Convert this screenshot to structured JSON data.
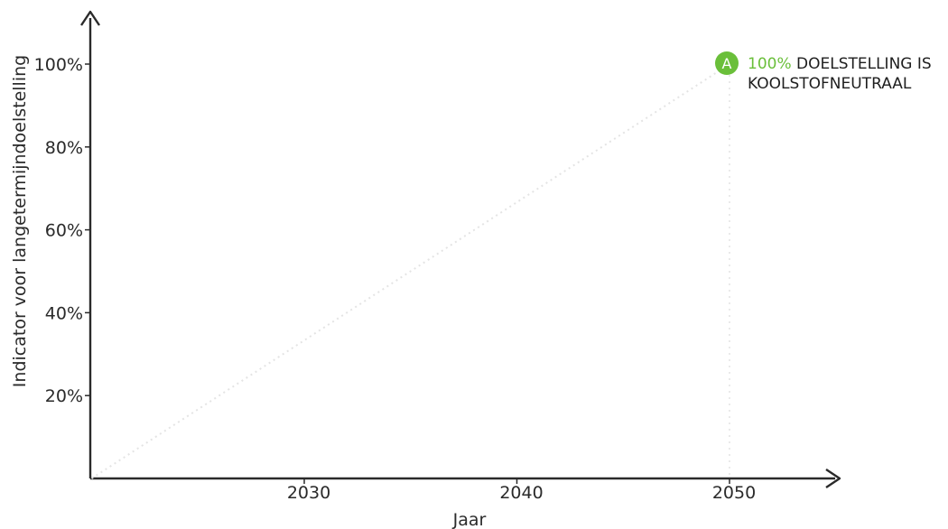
{
  "chart_data": {
    "type": "line",
    "title": "",
    "xlabel": "Jaar",
    "ylabel": "Indicator voor langetermijndoelstelling",
    "x_ticks": [
      "2030",
      "2040",
      "2050"
    ],
    "y_ticks": [
      "20%",
      "40%",
      "60%",
      "80%",
      "100%"
    ],
    "xlim": [
      2020,
      2055
    ],
    "ylim": [
      0,
      100
    ],
    "grid": false,
    "series": [
      {
        "x": [
          2020,
          2050
        ],
        "y": [
          0,
          100
        ],
        "style": "dotted",
        "color": "#e4e4e4"
      }
    ],
    "annotations": [
      {
        "marker": "A",
        "highlight": "100%",
        "line1": "DOELSTELLING IS",
        "line2": "KOOLSTOFNEUTRAAL",
        "x": 2050,
        "y": 100
      }
    ],
    "colors": {
      "axis": "#2a2a2a",
      "accent": "#6abf3a",
      "faint": "#e4e4e4"
    }
  }
}
